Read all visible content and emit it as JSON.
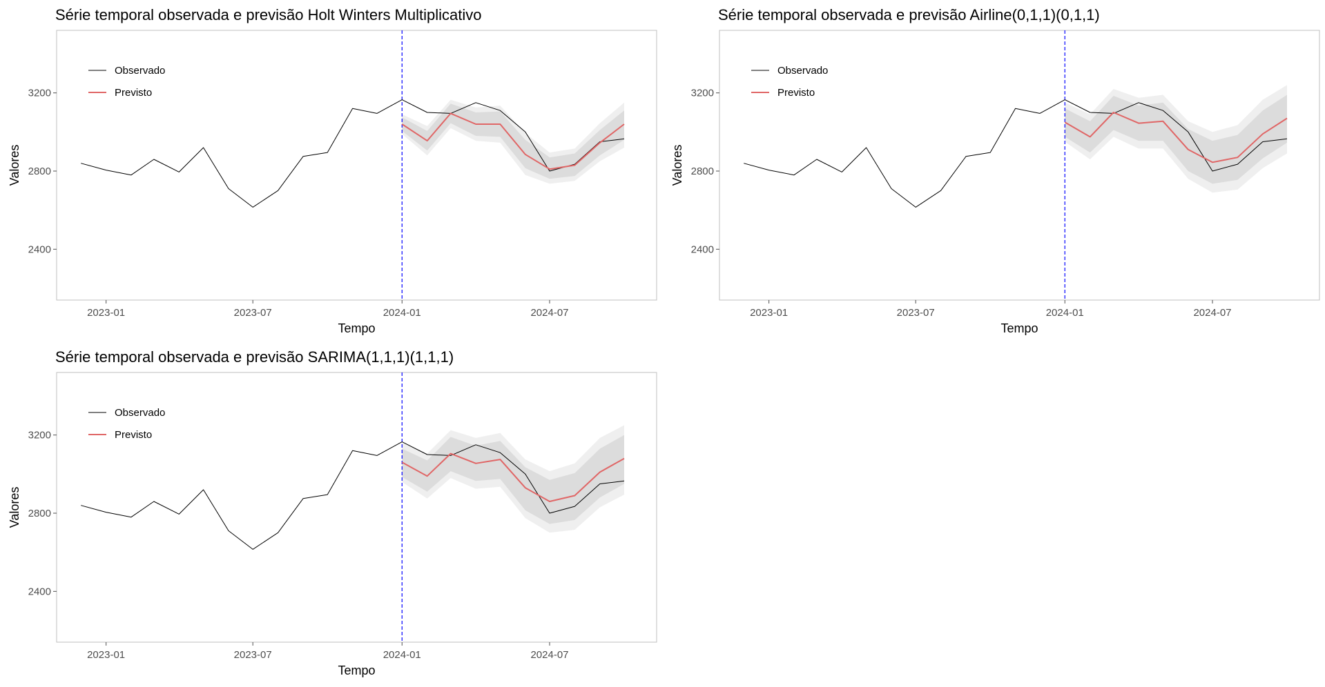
{
  "chart_data": [
    {
      "type": "line",
      "title": "Série temporal observada e previsão Holt Winters Multiplicativo",
      "xlabel": "Tempo",
      "ylabel": "Valores",
      "ylim": [
        2140,
        3520
      ],
      "xlim": [
        "2022-11-01",
        "2024-11-10"
      ],
      "x_ticks": [
        {
          "date": "2023-01-01",
          "label": "2023-01"
        },
        {
          "date": "2023-07-01",
          "label": "2023-07"
        },
        {
          "date": "2024-01-01",
          "label": "2024-01"
        },
        {
          "date": "2024-07-01",
          "label": "2024-07"
        }
      ],
      "y_ticks": [
        2400,
        2800,
        3200
      ],
      "grid": false,
      "legend_position": "top-left",
      "vline": {
        "date": "2024-01-01",
        "color": "#0000ff",
        "style": "dashed"
      },
      "series": [
        {
          "name": "Observado",
          "color": "#000000",
          "x": [
            "2022-12-01",
            "2023-01-01",
            "2023-02-01",
            "2023-03-01",
            "2023-04-01",
            "2023-05-01",
            "2023-06-01",
            "2023-07-01",
            "2023-08-01",
            "2023-09-01",
            "2023-10-01",
            "2023-11-01",
            "2023-12-01",
            "2024-01-01",
            "2024-02-01",
            "2024-03-01",
            "2024-04-01",
            "2024-05-01",
            "2024-06-01",
            "2024-07-01",
            "2024-08-01",
            "2024-09-01",
            "2024-10-01"
          ],
          "values": [
            2840,
            2805,
            2780,
            2860,
            2795,
            2920,
            2710,
            2615,
            2700,
            2875,
            2895,
            3120,
            3095,
            3165,
            3100,
            3095,
            3150,
            3110,
            3000,
            2800,
            2835,
            2950,
            2965
          ]
        },
        {
          "name": "Previsto",
          "color": "#e06666",
          "x": [
            "2024-01-01",
            "2024-02-01",
            "2024-03-01",
            "2024-04-01",
            "2024-05-01",
            "2024-06-01",
            "2024-07-01",
            "2024-08-01",
            "2024-09-01",
            "2024-10-01"
          ],
          "values": [
            3040,
            2955,
            3095,
            3040,
            3040,
            2885,
            2810,
            2830,
            2945,
            3040
          ]
        }
      ],
      "intervals": {
        "x": [
          "2024-01-01",
          "2024-02-01",
          "2024-03-01",
          "2024-04-01",
          "2024-05-01",
          "2024-06-01",
          "2024-07-01",
          "2024-08-01",
          "2024-09-01",
          "2024-10-01"
        ],
        "lower_95": [
          2990,
          2880,
          3020,
          2955,
          2945,
          2780,
          2735,
          2750,
          2850,
          2920
        ],
        "lower_80": [
          3005,
          2905,
          3045,
          2980,
          2975,
          2815,
          2760,
          2775,
          2880,
          2960
        ],
        "upper_80": [
          3075,
          3005,
          3145,
          3100,
          3105,
          2960,
          2870,
          2890,
          3010,
          3110
        ],
        "upper_95": [
          3090,
          3030,
          3165,
          3125,
          3135,
          2995,
          2895,
          2915,
          3045,
          3150
        ]
      }
    },
    {
      "type": "line",
      "title": "Série temporal observada e previsão Airline(0,1,1)(0,1,1)",
      "xlabel": "Tempo",
      "ylabel": "Valores",
      "ylim": [
        2140,
        3520
      ],
      "xlim": [
        "2022-11-01",
        "2024-11-10"
      ],
      "x_ticks": [
        {
          "date": "2023-01-01",
          "label": "2023-01"
        },
        {
          "date": "2023-07-01",
          "label": "2023-07"
        },
        {
          "date": "2024-01-01",
          "label": "2024-01"
        },
        {
          "date": "2024-07-01",
          "label": "2024-07"
        }
      ],
      "y_ticks": [
        2400,
        2800,
        3200
      ],
      "grid": false,
      "legend_position": "top-left",
      "vline": {
        "date": "2024-01-01",
        "color": "#0000ff",
        "style": "dashed"
      },
      "series": [
        {
          "name": "Observado",
          "color": "#000000",
          "x": [
            "2022-12-01",
            "2023-01-01",
            "2023-02-01",
            "2023-03-01",
            "2023-04-01",
            "2023-05-01",
            "2023-06-01",
            "2023-07-01",
            "2023-08-01",
            "2023-09-01",
            "2023-10-01",
            "2023-11-01",
            "2023-12-01",
            "2024-01-01",
            "2024-02-01",
            "2024-03-01",
            "2024-04-01",
            "2024-05-01",
            "2024-06-01",
            "2024-07-01",
            "2024-08-01",
            "2024-09-01",
            "2024-10-01"
          ],
          "values": [
            2840,
            2805,
            2780,
            2860,
            2795,
            2920,
            2710,
            2615,
            2700,
            2875,
            2895,
            3120,
            3095,
            3165,
            3100,
            3095,
            3150,
            3110,
            3000,
            2800,
            2835,
            2950,
            2965
          ]
        },
        {
          "name": "Previsto",
          "color": "#e06666",
          "x": [
            "2024-01-01",
            "2024-02-01",
            "2024-03-01",
            "2024-04-01",
            "2024-05-01",
            "2024-06-01",
            "2024-07-01",
            "2024-08-01",
            "2024-09-01",
            "2024-10-01"
          ],
          "values": [
            3050,
            2975,
            3100,
            3045,
            3055,
            2910,
            2845,
            2870,
            2990,
            3070
          ]
        }
      ],
      "intervals": {
        "x": [
          "2024-01-01",
          "2024-02-01",
          "2024-03-01",
          "2024-04-01",
          "2024-05-01",
          "2024-06-01",
          "2024-07-01",
          "2024-08-01",
          "2024-09-01",
          "2024-10-01"
        ],
        "lower_95": [
          2950,
          2860,
          2975,
          2915,
          2915,
          2760,
          2690,
          2705,
          2815,
          2890
        ],
        "lower_80": [
          2975,
          2895,
          3010,
          2955,
          2955,
          2800,
          2735,
          2755,
          2865,
          2945
        ],
        "upper_80": [
          3120,
          3055,
          3185,
          3135,
          3150,
          3015,
          2955,
          2985,
          3110,
          3190
        ],
        "upper_95": [
          3150,
          3090,
          3220,
          3175,
          3190,
          3055,
          3000,
          3035,
          3165,
          3240
        ]
      }
    },
    {
      "type": "line",
      "title": "Série temporal observada e previsão SARIMA(1,1,1)(1,1,1)",
      "xlabel": "Tempo",
      "ylabel": "Valores",
      "ylim": [
        2140,
        3520
      ],
      "xlim": [
        "2022-11-01",
        "2024-11-10"
      ],
      "x_ticks": [
        {
          "date": "2023-01-01",
          "label": "2023-01"
        },
        {
          "date": "2023-07-01",
          "label": "2023-07"
        },
        {
          "date": "2024-01-01",
          "label": "2024-01"
        },
        {
          "date": "2024-07-01",
          "label": "2024-07"
        }
      ],
      "y_ticks": [
        2400,
        2800,
        3200
      ],
      "grid": false,
      "legend_position": "top-left",
      "vline": {
        "date": "2024-01-01",
        "color": "#0000ff",
        "style": "dashed"
      },
      "series": [
        {
          "name": "Observado",
          "color": "#000000",
          "x": [
            "2022-12-01",
            "2023-01-01",
            "2023-02-01",
            "2023-03-01",
            "2023-04-01",
            "2023-05-01",
            "2023-06-01",
            "2023-07-01",
            "2023-08-01",
            "2023-09-01",
            "2023-10-01",
            "2023-11-01",
            "2023-12-01",
            "2024-01-01",
            "2024-02-01",
            "2024-03-01",
            "2024-04-01",
            "2024-05-01",
            "2024-06-01",
            "2024-07-01",
            "2024-08-01",
            "2024-09-01",
            "2024-10-01"
          ],
          "values": [
            2840,
            2805,
            2780,
            2860,
            2795,
            2920,
            2710,
            2615,
            2700,
            2875,
            2895,
            3120,
            3095,
            3165,
            3100,
            3095,
            3150,
            3110,
            3000,
            2800,
            2835,
            2950,
            2965
          ]
        },
        {
          "name": "Previsto",
          "color": "#e06666",
          "x": [
            "2024-01-01",
            "2024-02-01",
            "2024-03-01",
            "2024-04-01",
            "2024-05-01",
            "2024-06-01",
            "2024-07-01",
            "2024-08-01",
            "2024-09-01",
            "2024-10-01"
          ],
          "values": [
            3060,
            2990,
            3105,
            3055,
            3075,
            2930,
            2860,
            2890,
            3010,
            3080
          ]
        }
      ],
      "intervals": {
        "x": [
          "2024-01-01",
          "2024-02-01",
          "2024-03-01",
          "2024-04-01",
          "2024-05-01",
          "2024-06-01",
          "2024-07-01",
          "2024-08-01",
          "2024-09-01",
          "2024-10-01"
        ],
        "lower_95": [
          2960,
          2875,
          2980,
          2925,
          2935,
          2775,
          2700,
          2715,
          2830,
          2895
        ],
        "lower_80": [
          2985,
          2910,
          3015,
          2965,
          2975,
          2815,
          2745,
          2765,
          2880,
          2950
        ],
        "upper_80": [
          3130,
          3070,
          3190,
          3145,
          3170,
          3035,
          2970,
          3005,
          3130,
          3200
        ],
        "upper_95": [
          3160,
          3105,
          3225,
          3185,
          3210,
          3075,
          3015,
          3055,
          3185,
          3250
        ]
      }
    }
  ]
}
